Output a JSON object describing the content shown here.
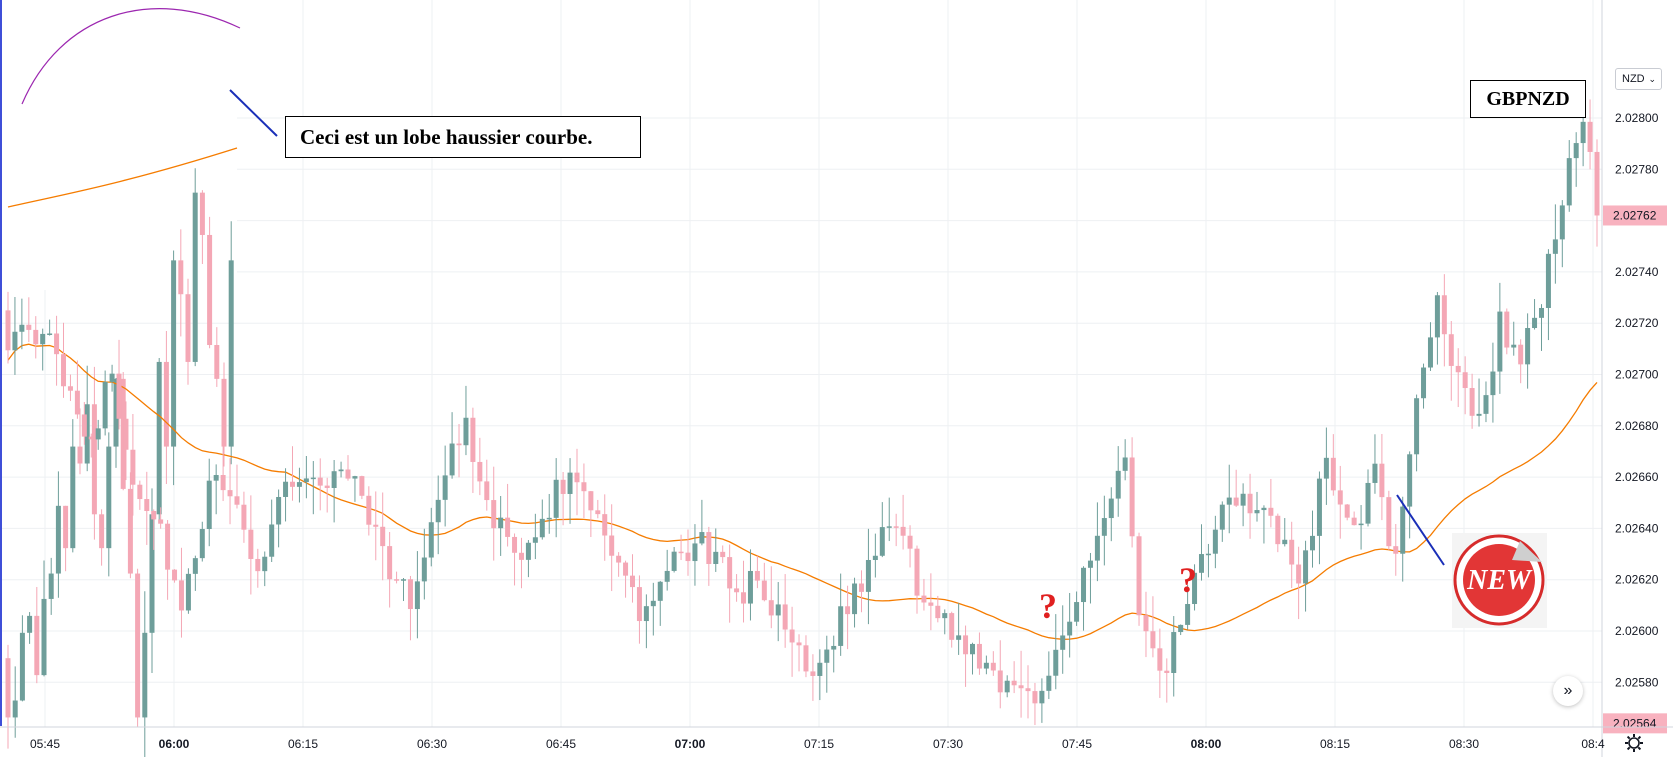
{
  "chart_data": {
    "type": "candlestick",
    "symbol": "GBPNZD",
    "currency": "NZD",
    "annotation": "Ceci est un lobe haussier courbe.",
    "question_marks": [
      "?",
      "?"
    ],
    "badge": "NEW",
    "last_price_label": "2.02762",
    "low_price_label": "2.02564",
    "y_ticks": [
      "2.02800",
      "2.02780",
      "2.02760",
      "2.02740",
      "2.02720",
      "2.02700",
      "2.02680",
      "2.02660",
      "2.02640",
      "2.02620",
      "2.02600",
      "2.02580"
    ],
    "x_ticks": [
      "05:45",
      "06:00",
      "06:15",
      "06:30",
      "06:45",
      "07:00",
      "07:15",
      "07:30",
      "07:45",
      "08:00",
      "08:15",
      "08:30",
      "08:4"
    ],
    "x_ticks_bold": [
      "06:00",
      "07:00",
      "08:00"
    ],
    "ylim": [
      2.02564,
      2.02807
    ],
    "moving_average_color": "#f57c00",
    "up_color": "#6e9e9a",
    "down_color": "#f4a7b5",
    "trend_line_color": "#1a2fb8",
    "arc_color": "#9c27b0",
    "last_price_color": "#f8b2bf",
    "candle_count": 170,
    "candle_start_time": "05:41",
    "candle_interval_minutes": 1
  }
}
